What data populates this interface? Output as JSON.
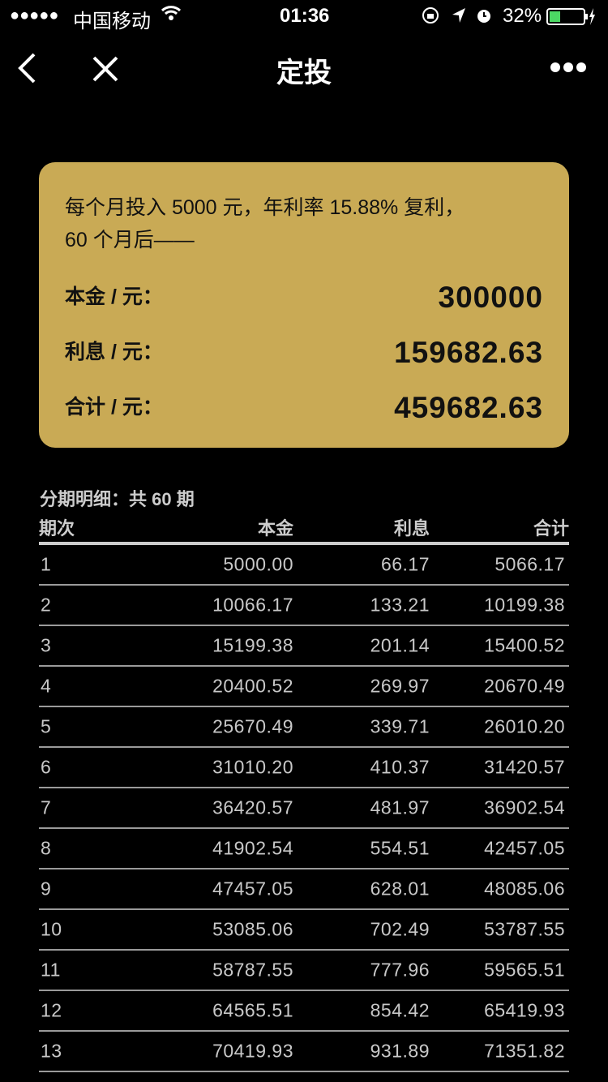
{
  "status": {
    "signal": "●●●●●",
    "carrier": "中国移动",
    "time": "01:36",
    "battery": "32%",
    "battery_level": 0.32,
    "battery_color": "#4cd964"
  },
  "nav": {
    "title": "定投"
  },
  "card": {
    "desc_line1": "每个月投入 5000 元，年利率 15.88% 复利，",
    "desc_line2": "60 个月后——",
    "principal_label": "本金 / 元：",
    "principal": "300000",
    "interest_label": "利息 / 元：",
    "interest": "159682.63",
    "total_label": "合计 / 元：",
    "total": "459682.63",
    "bg": "#c9aa55"
  },
  "detail": {
    "title": "分期明细：共 60 期",
    "headers": [
      "期次",
      "本金",
      "利息",
      "合计"
    ],
    "rows": [
      [
        "1",
        "5000.00",
        "66.17",
        "5066.17"
      ],
      [
        "2",
        "10066.17",
        "133.21",
        "10199.38"
      ],
      [
        "3",
        "15199.38",
        "201.14",
        "15400.52"
      ],
      [
        "4",
        "20400.52",
        "269.97",
        "20670.49"
      ],
      [
        "5",
        "25670.49",
        "339.71",
        "26010.20"
      ],
      [
        "6",
        "31010.20",
        "410.37",
        "31420.57"
      ],
      [
        "7",
        "36420.57",
        "481.97",
        "36902.54"
      ],
      [
        "8",
        "41902.54",
        "554.51",
        "42457.05"
      ],
      [
        "9",
        "47457.05",
        "628.01",
        "48085.06"
      ],
      [
        "10",
        "53085.06",
        "702.49",
        "53787.55"
      ],
      [
        "11",
        "58787.55",
        "777.96",
        "59565.51"
      ],
      [
        "12",
        "64565.51",
        "854.42",
        "65419.93"
      ],
      [
        "13",
        "70419.93",
        "931.89",
        "71351.82"
      ]
    ]
  }
}
